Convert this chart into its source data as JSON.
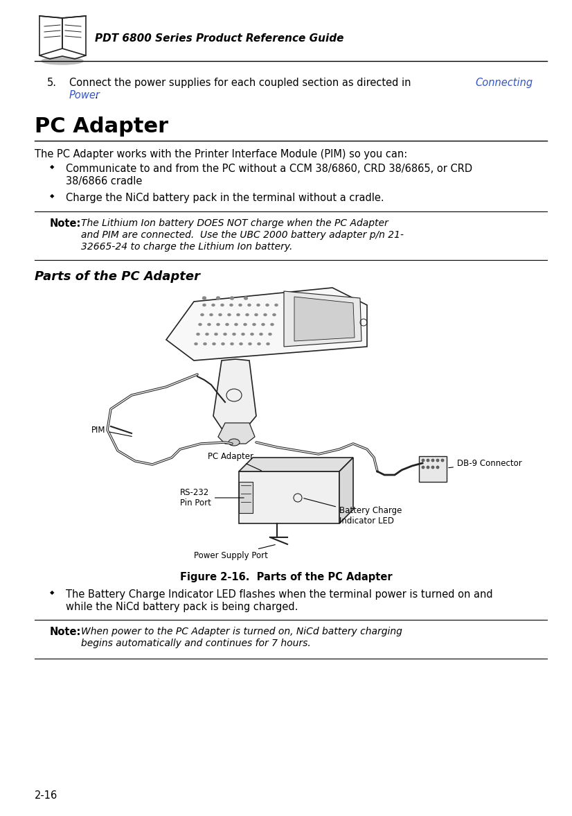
{
  "bg_color": "#ffffff",
  "header_text": "PDT 6800 Series Product Reference Guide",
  "header_font_size": 11,
  "page_number": "2-16",
  "section_title": "PC Adapter",
  "intro_text": "The PC Adapter works with the Printer Interface Module (PIM) so you can:",
  "bullet1_line1": "Communicate to and from the PC without a CCM 38/6860, CRD 38/6865, or CRD",
  "bullet1_line2": "38/6866 cradle",
  "bullet2": "Charge the NiCd battery pack in the terminal without a cradle.",
  "note_label": "Note:",
  "note_text_line1": "The Lithium Ion battery DOES NOT charge when the PC Adapter",
  "note_text_line2": "and PIM are connected.  Use the UBC 2000 battery adapter p/n 21-",
  "note_text_line3": "32665-24 to charge the Lithium Ion battery.",
  "subsection_title": "Parts of the PC Adapter",
  "figure_caption": "Figure 2-16.  Parts of the PC Adapter",
  "bullet3_line1": "The Battery Charge Indicator LED flashes when the terminal power is turned on and",
  "bullet3_line2": "while the NiCd battery pack is being charged.",
  "note2_label": "Note:",
  "note2_text_line1": "When power to the PC Adapter is turned on, NiCd battery charging",
  "note2_text_line2": "begins automatically and continues for 7 hours.",
  "link_color": "#3355CC",
  "text_color": "#000000",
  "edge_color": "#222222"
}
